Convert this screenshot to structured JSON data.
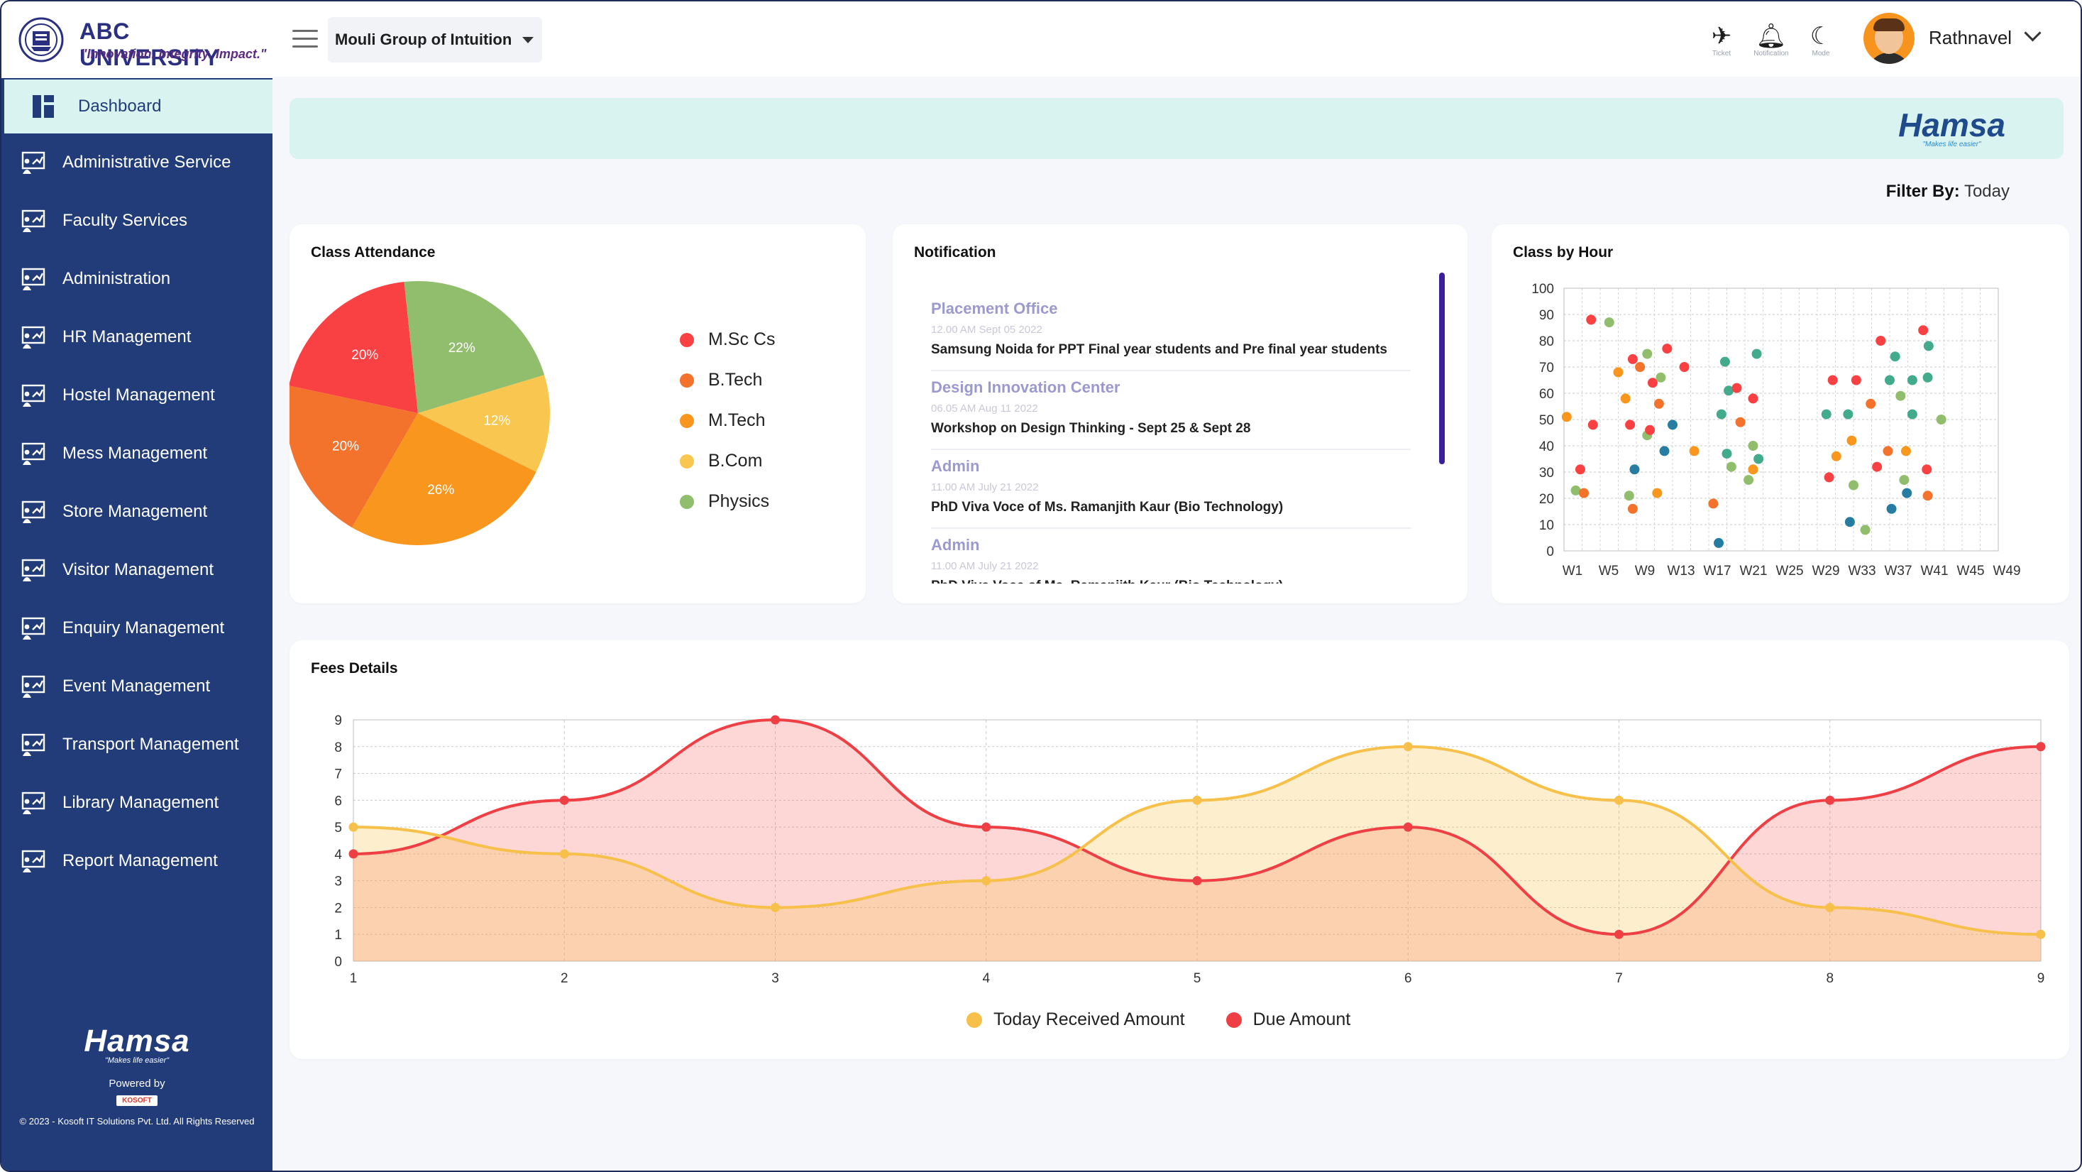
{
  "brand": {
    "name": "ABC UNIVERSITY",
    "tagline": "\"Innovation. Integrity. Impact.\""
  },
  "sidebar": {
    "items": [
      {
        "label": "Dashboard",
        "active": true
      },
      {
        "label": "Administrative Service"
      },
      {
        "label": "Faculty Services"
      },
      {
        "label": "Administration"
      },
      {
        "label": "HR Management"
      },
      {
        "label": "Hostel Management"
      },
      {
        "label": "Mess Management"
      },
      {
        "label": "Store Management"
      },
      {
        "label": "Visitor Management"
      },
      {
        "label": "Enquiry Management"
      },
      {
        "label": "Event Management"
      },
      {
        "label": "Transport Management"
      },
      {
        "label": "Library Management"
      },
      {
        "label": "Report Management"
      }
    ],
    "footer": {
      "logo": "Hamsa",
      "slogan": "\"Makes life easier\"",
      "powered": "Powered by",
      "kosoft": "KOSOFT",
      "copyright": "© 2023 - Kosoft IT Solutions Pvt. Ltd. All Rights Reserved"
    }
  },
  "topbar": {
    "org": "Mouli Group of Intuition",
    "ticket_label": "Ticket",
    "notification_label": "Notification",
    "mode_label": "Mode",
    "user": "Rathnavel"
  },
  "banner": {
    "logo": "Hamsa",
    "slogan": "\"Makes life easier\""
  },
  "filter": {
    "label": "Filter By:",
    "value": "Today"
  },
  "colors": {
    "sidebar": "#213c78",
    "accent": "#d9f3f0",
    "red": "#f4424b",
    "orange": "#f7a21e",
    "dark_orange": "#f47a2c",
    "yellow": "#f9c74f",
    "green": "#90be6d"
  },
  "attendance": {
    "title": "Class Attendance",
    "chart_data": {
      "type": "pie",
      "labels": [
        "M.Sc Cs",
        "B.Tech",
        "M.Tech",
        "B.Com",
        "Physics"
      ],
      "slice_labels": [
        "20%",
        "20%",
        "26%",
        "12%",
        "22%"
      ],
      "values": [
        20,
        20,
        26,
        12,
        22
      ],
      "colors": [
        "#f94144",
        "#f3722c",
        "#f8961e",
        "#f9c74f",
        "#90be6d"
      ],
      "legend_colors": [
        "#f94144",
        "#f3722c",
        "#f8961e",
        "#f9c74f",
        "#90be6d"
      ],
      "legend_labels": [
        "M.Sc Cs",
        "B.Tech",
        "M.Tech",
        "B.Com",
        "Physics"
      ]
    }
  },
  "notification": {
    "title": "Notification",
    "items": [
      {
        "title": "Placement Office",
        "time": "12.00 AM Sept 05 2022",
        "msg": "Samsung Noida for PPT Final year students and Pre final year students"
      },
      {
        "title": "Design Innovation Center",
        "time": "06.05 AM Aug 11 2022",
        "msg": "Workshop on Design Thinking - Sept 25 & Sept 28"
      },
      {
        "title": "Admin",
        "time": "11.00 AM July 21 2022",
        "msg": "PhD Viva Voce of Ms. Ramanjith Kaur (Bio Technology)"
      },
      {
        "title": "Admin",
        "time": "11.00 AM July 21 2022",
        "msg": "PhD Viva Voce of Ms. Ramanjith Kaur (Bio Technology)"
      }
    ]
  },
  "class_by_hour": {
    "title": "Class by Hour",
    "chart_data": {
      "type": "scatter",
      "x_ticks": [
        "W1",
        "W5",
        "W9",
        "W13",
        "W17",
        "W21",
        "W25",
        "W29",
        "W33",
        "W37",
        "W41",
        "W45",
        "W49"
      ],
      "y_ticks": [
        0,
        10,
        20,
        30,
        40,
        50,
        60,
        70,
        80,
        90,
        100
      ],
      "xlim": [
        0,
        48
      ],
      "ylim": [
        0,
        100
      ],
      "points": [
        {
          "x": 0.3,
          "y": 51,
          "c": "#f8961e"
        },
        {
          "x": 1.3,
          "y": 23,
          "c": "#90be6d"
        },
        {
          "x": 1.8,
          "y": 31,
          "c": "#f94144"
        },
        {
          "x": 2.2,
          "y": 22,
          "c": "#f3722c"
        },
        {
          "x": 3.0,
          "y": 88,
          "c": "#f94144"
        },
        {
          "x": 5.0,
          "y": 87,
          "c": "#90be6d"
        },
        {
          "x": 3.2,
          "y": 48,
          "c": "#f94144"
        },
        {
          "x": 6.0,
          "y": 68,
          "c": "#f8961e"
        },
        {
          "x": 6.8,
          "y": 58,
          "c": "#f8961e"
        },
        {
          "x": 7.2,
          "y": 21,
          "c": "#90be6d"
        },
        {
          "x": 7.3,
          "y": 48,
          "c": "#f94144"
        },
        {
          "x": 7.6,
          "y": 16,
          "c": "#f3722c"
        },
        {
          "x": 7.8,
          "y": 31,
          "c": "#277da1"
        },
        {
          "x": 7.6,
          "y": 73,
          "c": "#f94144"
        },
        {
          "x": 8.4,
          "y": 70,
          "c": "#f3722c"
        },
        {
          "x": 9.2,
          "y": 75,
          "c": "#90be6d"
        },
        {
          "x": 9.2,
          "y": 44,
          "c": "#90be6d"
        },
        {
          "x": 9.5,
          "y": 46,
          "c": "#f94144"
        },
        {
          "x": 9.8,
          "y": 64,
          "c": "#f94144"
        },
        {
          "x": 10.5,
          "y": 56,
          "c": "#f3722c"
        },
        {
          "x": 10.7,
          "y": 66,
          "c": "#90be6d"
        },
        {
          "x": 10.3,
          "y": 22,
          "c": "#f8961e"
        },
        {
          "x": 11.1,
          "y": 38,
          "c": "#277da1"
        },
        {
          "x": 11.4,
          "y": 77,
          "c": "#f94144"
        },
        {
          "x": 12.0,
          "y": 48,
          "c": "#277da1"
        },
        {
          "x": 13.3,
          "y": 70,
          "c": "#f94144"
        },
        {
          "x": 14.4,
          "y": 38,
          "c": "#f8961e"
        },
        {
          "x": 16.5,
          "y": 18,
          "c": "#f3722c"
        },
        {
          "x": 17.4,
          "y": 52,
          "c": "#43aa8b"
        },
        {
          "x": 17.8,
          "y": 72,
          "c": "#43aa8b"
        },
        {
          "x": 18.2,
          "y": 61,
          "c": "#43aa8b"
        },
        {
          "x": 18.0,
          "y": 37,
          "c": "#43aa8b"
        },
        {
          "x": 18.5,
          "y": 32,
          "c": "#90be6d"
        },
        {
          "x": 19.1,
          "y": 62,
          "c": "#f94144"
        },
        {
          "x": 19.5,
          "y": 49,
          "c": "#f3722c"
        },
        {
          "x": 20.4,
          "y": 27,
          "c": "#90be6d"
        },
        {
          "x": 20.9,
          "y": 58,
          "c": "#f94144"
        },
        {
          "x": 20.9,
          "y": 31,
          "c": "#f8961e"
        },
        {
          "x": 20.9,
          "y": 40,
          "c": "#90be6d"
        },
        {
          "x": 21.3,
          "y": 75,
          "c": "#43aa8b"
        },
        {
          "x": 21.5,
          "y": 35,
          "c": "#43aa8b"
        },
        {
          "x": 17.1,
          "y": 3,
          "c": "#277da1"
        },
        {
          "x": 29.0,
          "y": 52,
          "c": "#43aa8b"
        },
        {
          "x": 29.3,
          "y": 28,
          "c": "#f94144"
        },
        {
          "x": 29.7,
          "y": 65,
          "c": "#f94144"
        },
        {
          "x": 30.1,
          "y": 36,
          "c": "#f8961e"
        },
        {
          "x": 31.4,
          "y": 52,
          "c": "#43aa8b"
        },
        {
          "x": 31.8,
          "y": 42,
          "c": "#f8961e"
        },
        {
          "x": 31.6,
          "y": 11,
          "c": "#277da1"
        },
        {
          "x": 32.3,
          "y": 65,
          "c": "#f94144"
        },
        {
          "x": 32.0,
          "y": 25,
          "c": "#90be6d"
        },
        {
          "x": 33.3,
          "y": 8,
          "c": "#90be6d"
        },
        {
          "x": 33.9,
          "y": 56,
          "c": "#f3722c"
        },
        {
          "x": 34.6,
          "y": 32,
          "c": "#f94144"
        },
        {
          "x": 35.0,
          "y": 80,
          "c": "#f94144"
        },
        {
          "x": 36.0,
          "y": 65,
          "c": "#43aa8b"
        },
        {
          "x": 35.8,
          "y": 38,
          "c": "#f3722c"
        },
        {
          "x": 36.6,
          "y": 74,
          "c": "#43aa8b"
        },
        {
          "x": 36.2,
          "y": 16,
          "c": "#277da1"
        },
        {
          "x": 37.6,
          "y": 27,
          "c": "#90be6d"
        },
        {
          "x": 37.2,
          "y": 59,
          "c": "#90be6d"
        },
        {
          "x": 37.9,
          "y": 22,
          "c": "#277da1"
        },
        {
          "x": 38.5,
          "y": 65,
          "c": "#43aa8b"
        },
        {
          "x": 38.5,
          "y": 52,
          "c": "#43aa8b"
        },
        {
          "x": 37.8,
          "y": 38,
          "c": "#f8961e"
        },
        {
          "x": 39.7,
          "y": 84,
          "c": "#f94144"
        },
        {
          "x": 40.3,
          "y": 78,
          "c": "#43aa8b"
        },
        {
          "x": 40.2,
          "y": 66,
          "c": "#43aa8b"
        },
        {
          "x": 40.1,
          "y": 31,
          "c": "#f94144"
        },
        {
          "x": 40.2,
          "y": 21,
          "c": "#f3722c"
        },
        {
          "x": 41.7,
          "y": 50,
          "c": "#90be6d"
        }
      ]
    }
  },
  "fees": {
    "title": "Fees Details",
    "chart_data": {
      "type": "area",
      "x": [
        1,
        2,
        3,
        4,
        5,
        6,
        7,
        8,
        9
      ],
      "ylim": [
        0,
        9
      ],
      "y_ticks": [
        0,
        1,
        2,
        3,
        4,
        5,
        6,
        7,
        8,
        9
      ],
      "series": [
        {
          "name": "Today Received Amount",
          "color": "#f9c74f",
          "values": [
            5,
            4,
            2,
            3,
            6,
            8,
            6,
            2,
            1
          ]
        },
        {
          "name": "Due Amount",
          "color": "#f94144",
          "values": [
            4,
            6,
            9,
            5,
            3,
            5,
            1,
            6,
            8
          ]
        }
      ]
    }
  }
}
